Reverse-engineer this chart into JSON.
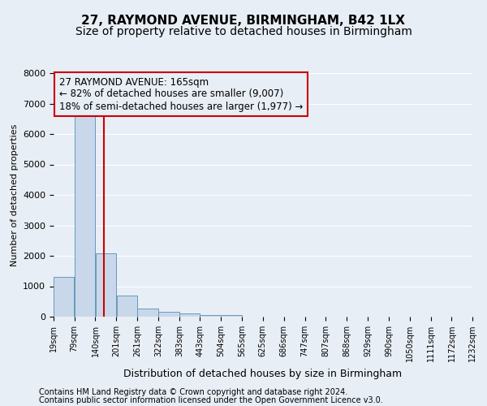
{
  "title1": "27, RAYMOND AVENUE, BIRMINGHAM, B42 1LX",
  "title2": "Size of property relative to detached houses in Birmingham",
  "xlabel": "Distribution of detached houses by size in Birmingham",
  "ylabel": "Number of detached properties",
  "footer1": "Contains HM Land Registry data © Crown copyright and database right 2024.",
  "footer2": "Contains public sector information licensed under the Open Government Licence v3.0.",
  "bar_edges": [
    19,
    79,
    140,
    201,
    261,
    322,
    383,
    443,
    504,
    565,
    625,
    686,
    747,
    807,
    868,
    929,
    990,
    1050,
    1111,
    1172,
    1232
  ],
  "bar_values": [
    1300,
    6600,
    2080,
    700,
    280,
    150,
    100,
    60,
    60,
    0,
    0,
    0,
    0,
    0,
    0,
    0,
    0,
    0,
    0,
    0
  ],
  "bar_color": "#c8d8ea",
  "bar_edgecolor": "#6699bb",
  "subject_size": 165,
  "vline_color": "#cc0000",
  "annotation_line1": "27 RAYMOND AVENUE: 165sqm",
  "annotation_line2": "← 82% of detached houses are smaller (9,007)",
  "annotation_line3": "18% of semi-detached houses are larger (1,977) →",
  "ylim": [
    0,
    8000
  ],
  "yticks": [
    0,
    1000,
    2000,
    3000,
    4000,
    5000,
    6000,
    7000,
    8000
  ],
  "bg_color": "#e8eef5",
  "grid_color": "#ffffff",
  "title1_fontsize": 11,
  "title2_fontsize": 10,
  "annotation_fontsize": 8.5,
  "footer_fontsize": 7
}
